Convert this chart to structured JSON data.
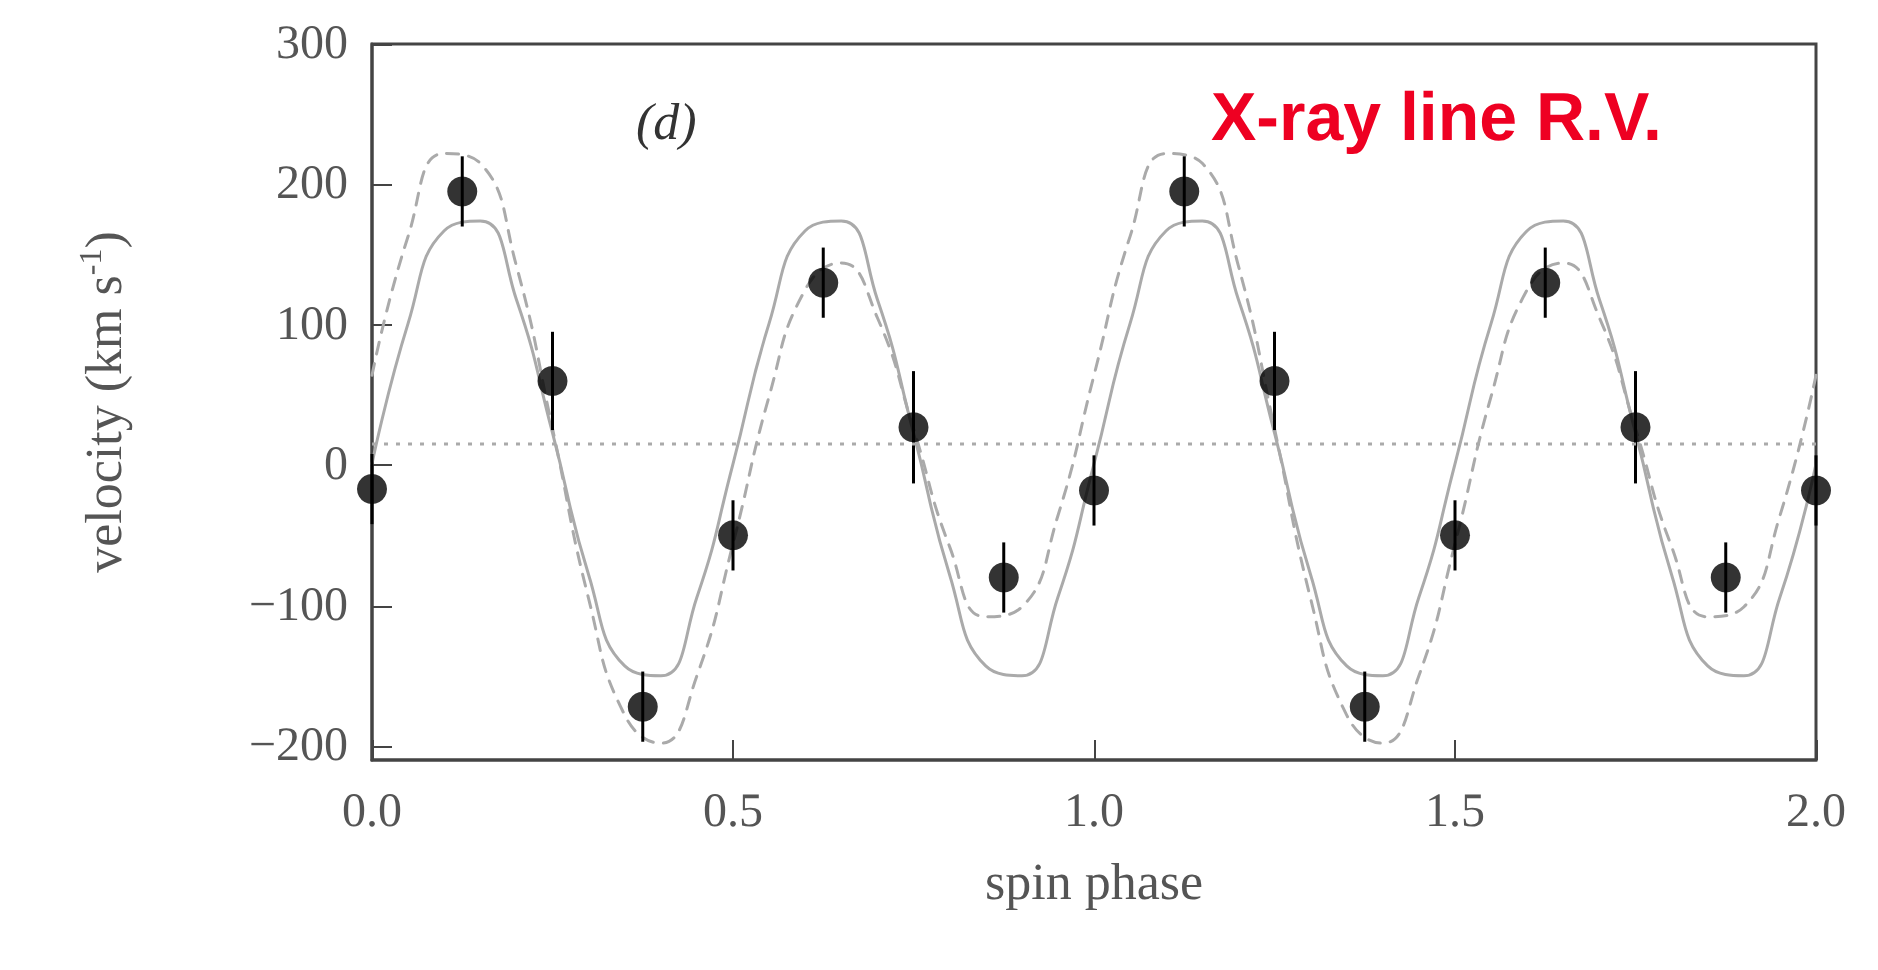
{
  "chart_data": {
    "type": "scatter",
    "xlabel": "spin phase",
    "ylabel": "velocity (km s$^{-1}$)",
    "annotations": [
      "(d)",
      "X-ray line R.V."
    ],
    "xlim": [
      0,
      2
    ],
    "xticks": [
      {
        "value": 0,
        "label": "0.0"
      },
      {
        "value": 0.5,
        "label": "0.5"
      },
      {
        "value": 1,
        "label": "1.0"
      },
      {
        "value": 1.5,
        "label": "1.5"
      },
      {
        "value": 2,
        "label": "2.0"
      }
    ],
    "ylim": [
      -210,
      300
    ],
    "yticks": [
      {
        "value": -200,
        "label": "−200"
      },
      {
        "value": -100,
        "label": "−100"
      },
      0,
      100,
      200,
      300
    ],
    "grid": false,
    "marker": "circle",
    "ref_lines": [
      {
        "axis": "y",
        "value": 15,
        "color": "#aaaaaa",
        "line_style": "dotted"
      }
    ],
    "series": [
      {
        "type": "line",
        "color": "#aaaaaa",
        "line_style": "solid",
        "marker": "none",
        "x": [
          0,
          0.05,
          0.1,
          0.15,
          0.2,
          0.25,
          0.3,
          0.35,
          0.4,
          0.45,
          0.5,
          0.55,
          0.6,
          0.65,
          0.7,
          0.75,
          0.8,
          0.85,
          0.9,
          0.95,
          1,
          1.05,
          1.1,
          1.15,
          1.2,
          1.25,
          1.3,
          1.35,
          1.4,
          1.45,
          1.5,
          1.55,
          1.6,
          1.65,
          1.7,
          1.75,
          1.8,
          1.85,
          1.9,
          1.95,
          2
        ],
        "values": [
          1,
          101,
          167,
          174,
          118,
          23,
          -78,
          -143,
          -150,
          -94,
          1,
          101,
          167,
          174,
          118,
          23,
          -78,
          -143,
          -150,
          -94,
          1,
          101,
          167,
          174,
          118,
          23,
          -78,
          -143,
          -150,
          -94,
          1,
          101,
          167,
          174,
          118,
          23,
          -78,
          -143,
          -150,
          -94,
          1
        ]
      },
      {
        "type": "line",
        "color": "#aaaaaa",
        "line_style": "dashed",
        "marker": "none",
        "x": [
          0,
          0.05,
          0.1,
          0.15,
          0.2,
          0.25,
          0.3,
          0.35,
          0.4,
          0.45,
          0.5,
          0.55,
          0.6,
          0.65,
          0.7,
          0.75,
          0.8,
          0.85,
          0.9,
          0.95,
          1,
          1.05,
          1.1,
          1.15,
          1.2,
          1.25,
          1.3,
          1.35,
          1.4,
          1.45,
          1.5,
          1.55,
          1.6,
          1.65,
          1.7,
          1.75,
          1.8,
          1.85,
          1.9,
          1.95,
          2
        ],
        "values": [
          64,
          163,
          222,
          215,
          142,
          26,
          -95,
          -178,
          -198,
          -150,
          -56,
          49,
          125,
          144,
          105,
          26,
          -58,
          -108,
          -101,
          -36,
          64,
          163,
          222,
          215,
          142,
          26,
          -95,
          -178,
          -198,
          -150,
          -56,
          49,
          125,
          144,
          105,
          26,
          -58,
          -108,
          -101,
          -36,
          64
        ]
      },
      {
        "color": "#000000",
        "x": [
          0,
          0.125,
          0.25,
          0.375,
          0.5,
          0.625,
          0.75,
          0.875,
          1,
          1.125,
          1.25,
          1.375,
          1.5,
          1.625,
          1.75,
          1.875,
          2
        ],
        "values": [
          -17,
          195,
          60,
          -172,
          -50,
          130,
          27,
          -80,
          -18,
          195,
          60,
          -172,
          -50,
          130,
          27,
          -80,
          -18
        ],
        "errors": [
          25,
          25,
          35,
          25,
          25,
          25,
          40,
          25,
          25,
          25,
          35,
          25,
          25,
          25,
          40,
          25,
          25
        ]
      }
    ]
  }
}
